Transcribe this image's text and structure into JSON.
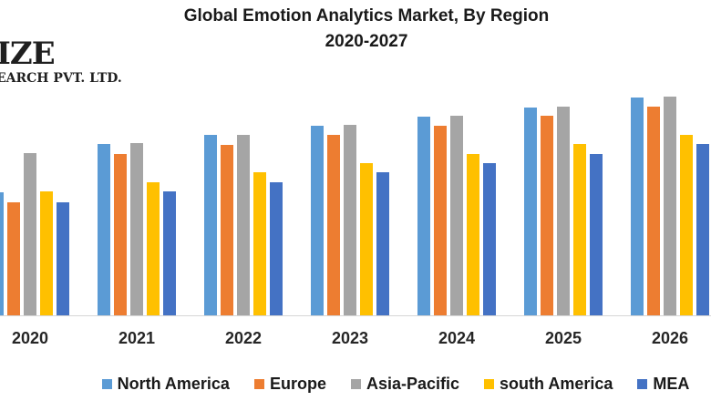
{
  "header": {
    "title_line1": "Global Emotion Analytics Market, By Region",
    "title_line2": "2020-2027"
  },
  "logo": {
    "text_top": "IZE",
    "text_bottom": "EARCH PVT. LTD."
  },
  "chart_data": {
    "type": "bar",
    "title": "Global Emotion Analytics Market, By Region 2020-2027",
    "xlabel": "",
    "ylabel": "",
    "value_axis": "hidden - values are relative bar heights in pixels, no y-axis shown",
    "grid": false,
    "legend_position": "bottom",
    "categories": [
      "2020",
      "2021",
      "2022",
      "2023",
      "2024",
      "2025",
      "2026"
    ],
    "series": [
      {
        "name": "North America",
        "color": "#5B9BD5",
        "values": [
          135,
          188,
          198,
          208,
          218,
          228,
          239
        ]
      },
      {
        "name": "Europe",
        "color": "#ED7D31",
        "values": [
          124,
          177,
          187,
          198,
          208,
          219,
          229
        ]
      },
      {
        "name": "Asia-Pacific",
        "color": "#A5A5A5",
        "values": [
          178,
          189,
          198,
          209,
          219,
          229,
          240
        ]
      },
      {
        "name": "south America",
        "color": "#FFC000",
        "values": [
          136,
          146,
          157,
          167,
          177,
          188,
          198
        ]
      },
      {
        "name": "MEA",
        "color": "#4472C4",
        "values": [
          124,
          136,
          146,
          157,
          167,
          177,
          188
        ]
      }
    ],
    "notes": "Title says 2020-2027 but the 2027 group is cropped off the right edge; the 2020 North America bar is clipped at the left edge."
  },
  "colors": {
    "axis_line": "#d6d6d6",
    "title_text": "#1a1a1a",
    "tick_text": "#262626"
  }
}
